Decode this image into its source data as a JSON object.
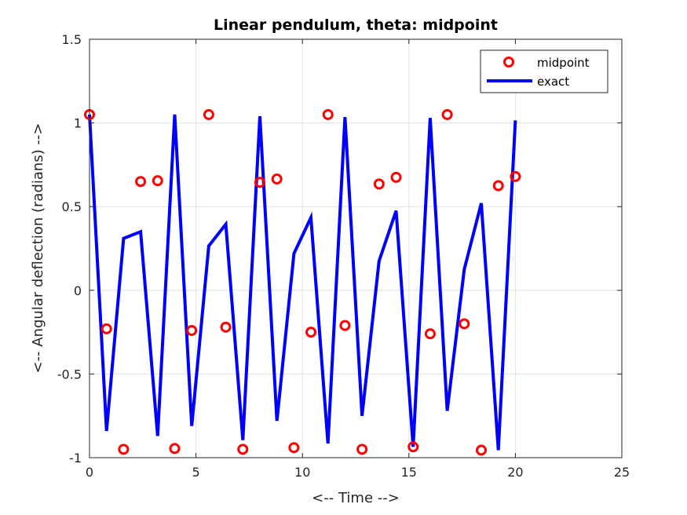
{
  "chart_data": {
    "type": "line",
    "title": "Linear pendulum, theta: midpoint",
    "xlabel": "<-- Time -->",
    "ylabel": "<-- Angular deflection (radians) -->",
    "xlim": [
      0,
      25
    ],
    "ylim": [
      -1,
      1.5
    ],
    "xticks": [
      0,
      5,
      10,
      15,
      20,
      25
    ],
    "yticks": [
      -1,
      -0.5,
      0,
      0.5,
      1,
      1.5
    ],
    "xtick_labels": [
      "0",
      "5",
      "10",
      "15",
      "20",
      "25"
    ],
    "ytick_labels": [
      "-1",
      "-0.5",
      "0",
      "0.5",
      "1",
      "1.5"
    ],
    "grid": true,
    "legend_position": "top-right",
    "series": [
      {
        "name": "midpoint",
        "style": "markers",
        "marker": "circle",
        "color": "#ff0000",
        "x": [
          0,
          0.8,
          1.6,
          2.4,
          3.2,
          4.0,
          4.8,
          5.6,
          6.4,
          7.2,
          8.0,
          8.8,
          9.6,
          10.4,
          11.2,
          12.0,
          12.8,
          13.6,
          14.4,
          15.2,
          16.0,
          16.8,
          17.6,
          18.4,
          19.2,
          20.0
        ],
        "y": [
          1.05,
          -0.23,
          -0.95,
          0.65,
          0.655,
          -0.945,
          -0.24,
          1.05,
          -0.22,
          -0.95,
          0.645,
          0.665,
          -0.94,
          -0.25,
          1.05,
          -0.21,
          -0.95,
          0.635,
          0.675,
          -0.935,
          -0.26,
          1.05,
          -0.2,
          -0.955,
          0.625,
          0.68
        ]
      },
      {
        "name": "exact",
        "style": "line",
        "color": "#0000ff",
        "x": [
          0,
          0.8,
          1.6,
          2.4,
          3.2,
          4.0,
          4.8,
          5.6,
          6.4,
          7.2,
          8.0,
          8.8,
          9.6,
          10.4,
          11.2,
          12.0,
          12.8,
          13.6,
          14.4,
          15.2,
          16.0,
          16.8,
          17.6,
          18.4,
          19.2,
          20.0
        ],
        "y": [
          1.05,
          -0.84,
          0.31,
          0.35,
          -0.87,
          1.05,
          -0.81,
          0.265,
          0.395,
          -0.895,
          1.04,
          -0.78,
          0.22,
          0.435,
          -0.915,
          1.035,
          -0.75,
          0.175,
          0.475,
          -0.935,
          1.03,
          -0.72,
          0.125,
          0.52,
          -0.955,
          1.015
        ]
      }
    ]
  }
}
